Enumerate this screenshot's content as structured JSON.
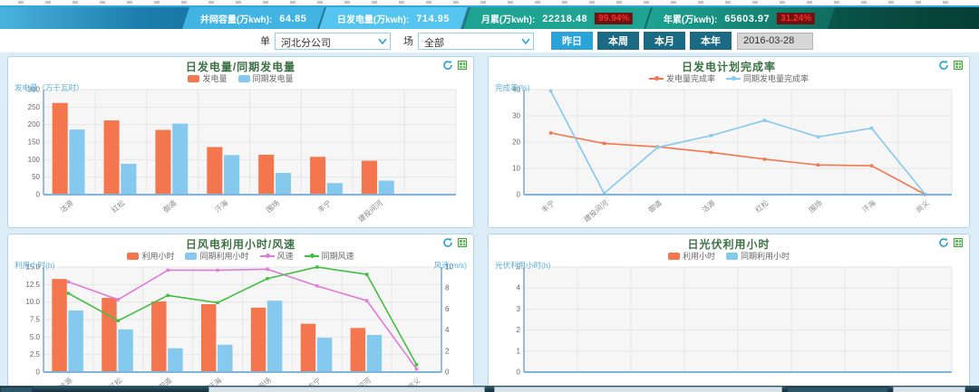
{
  "banner": {
    "stats": [
      {
        "label": "并网容量(万kwh):",
        "value": "64.85"
      },
      {
        "label": "日发电量(万kwh):",
        "value": "714.95"
      },
      {
        "label": "月累(万kwh):",
        "value": "22218.48",
        "pct": "99.94%"
      },
      {
        "label": "年累(万kwh):",
        "value": "65603.97",
        "pct": "31.24%"
      }
    ]
  },
  "filters": {
    "unit_label": "单",
    "unit_value": "河北分公司",
    "farm_label": "场",
    "farm_value": "全部",
    "buttons": [
      {
        "label": "昨日",
        "active": true
      },
      {
        "label": "本周",
        "active": false
      },
      {
        "label": "本月",
        "active": false
      },
      {
        "label": "本年",
        "active": false
      }
    ],
    "date": "2016-03-28"
  },
  "colors": {
    "accent_blue": "#29a3d8",
    "dark_button": "#1b6a84",
    "orange": "#f4764f",
    "sky_blue": "#85c9ef",
    "magenta": "#df7bd8",
    "green": "#44bd44",
    "pct_text": "#ff2b2b",
    "pct_bg": "#6e1212",
    "title_green": "#3c7144"
  },
  "chart_data": "see charts",
  "charts": [
    {
      "type": "bar",
      "title": "日发电量/同期发电量",
      "y_label": "发电量（万千瓦时）",
      "y_max": 300,
      "y_ticks": [
        "0",
        "50",
        "100",
        "150",
        "200",
        "250",
        "300"
      ],
      "categories": [
        "沽源",
        "红松",
        "御道",
        "汗海",
        "围场",
        "丰宁",
        "建投间河",
        ""
      ],
      "series": [
        {
          "name": "发电量",
          "type": "bar",
          "color": "#f4764f",
          "values": [
            262,
            212,
            185,
            136,
            114,
            108,
            97,
            null
          ]
        },
        {
          "name": "同期发电量",
          "type": "bar",
          "color": "#85c9ef",
          "values": [
            186,
            88,
            203,
            113,
            62,
            33,
            40,
            null
          ]
        }
      ]
    },
    {
      "type": "line",
      "title": "日发电计划完成率",
      "y_label": "完成率(%)",
      "y_max": 40,
      "y_ticks": [
        "0",
        "10",
        "20",
        "30",
        "40"
      ],
      "categories": [
        "丰宁",
        "建投间河",
        "御道",
        "沽源",
        "红松",
        "围场",
        "汗海",
        "尚义"
      ],
      "series": [
        {
          "name": "发电量完成率",
          "type": "line",
          "color": "#f4764f",
          "values": [
            23.5,
            19.5,
            18.2,
            16.1,
            13.5,
            11.3,
            11.0,
            0.1
          ]
        },
        {
          "name": "同期发电量完成率",
          "type": "line",
          "color": "#85c9ef",
          "values": [
            39.5,
            0.5,
            18.0,
            22.5,
            28.3,
            22.0,
            25.3,
            0.2
          ]
        }
      ]
    },
    {
      "type": "combo",
      "title": "日风电利用小时/风速",
      "y_label": "利用小时(h)",
      "y2_label": "风速(m/s)",
      "y_max": 15,
      "y_ticks": [
        "0",
        "2.5",
        "5.0",
        "7.5",
        "10.0",
        "12.5",
        "15.0"
      ],
      "y2_max": 10,
      "y2_ticks": [
        "0",
        "2",
        "4",
        "6",
        "8",
        "10"
      ],
      "categories": [
        "沽源",
        "红松",
        "御道",
        "汗海",
        "围场",
        "丰宁",
        "建投间河",
        "尚义"
      ],
      "series": [
        {
          "name": "利用小时",
          "type": "bar",
          "color": "#f4764f",
          "values": [
            13.3,
            10.6,
            10.1,
            9.7,
            9.2,
            6.9,
            6.3,
            null
          ]
        },
        {
          "name": "同期利用小时",
          "type": "bar",
          "color": "#85c9ef",
          "values": [
            8.8,
            6.1,
            3.4,
            3.9,
            10.2,
            4.9,
            5.3,
            null
          ]
        },
        {
          "name": "风速",
          "type": "line",
          "axis2": true,
          "color": "#df7bd8",
          "values": [
            8.6,
            6.9,
            9.7,
            9.7,
            9.8,
            8.2,
            6.8,
            0.3
          ]
        },
        {
          "name": "同期风速",
          "type": "line",
          "axis2": true,
          "color": "#44bd44",
          "values": [
            7.5,
            4.9,
            7.3,
            6.6,
            8.9,
            10.0,
            9.3,
            0.7
          ]
        }
      ]
    },
    {
      "type": "bar",
      "title": "日光伏利用小时",
      "y_label": "光伏利用小时(h)",
      "y_max": 5,
      "y_ticks": [
        "0",
        "1",
        "2",
        "3",
        "4",
        "5"
      ],
      "categories": [
        "",
        "",
        "",
        "",
        "",
        "",
        "",
        ""
      ],
      "series": [
        {
          "name": "利用小时",
          "type": "bar",
          "color": "#f4764f",
          "values": []
        },
        {
          "name": "同期利用小时",
          "type": "bar",
          "color": "#85c9ef",
          "values": []
        }
      ]
    }
  ]
}
